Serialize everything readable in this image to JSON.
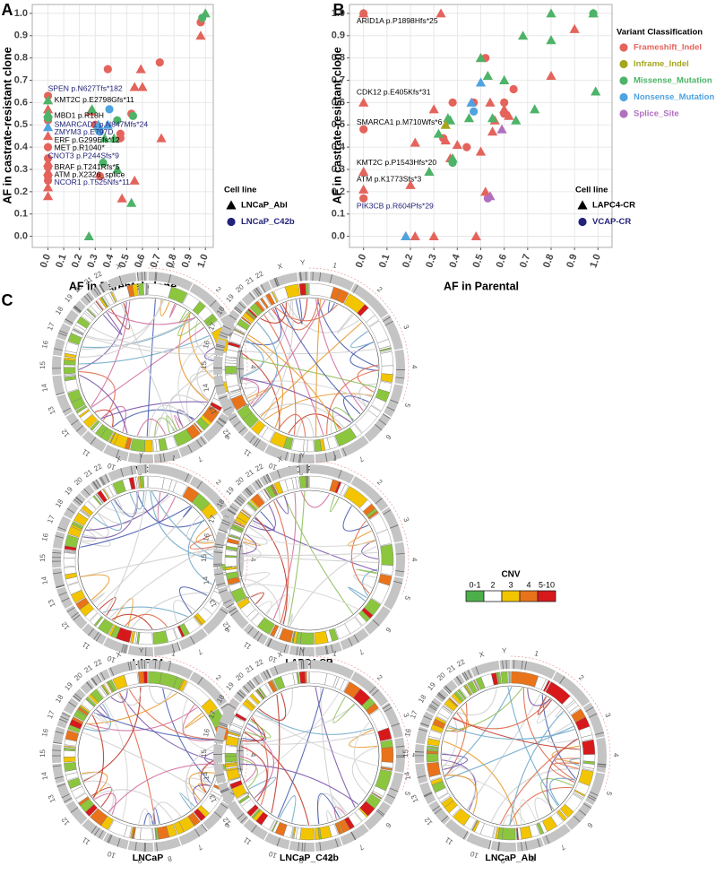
{
  "chart_data": [
    {
      "type": "scatter",
      "panel": "A",
      "xlabel": "AF in Parental clone",
      "ylabel": "AF in castrate-resistant clone",
      "xlim": [
        -0.1,
        1.05
      ],
      "ylim": [
        -0.05,
        1.04
      ],
      "grid": true,
      "xticks": [
        {
          "value": 0,
          "label": "0.0"
        },
        {
          "value": 0.1,
          "label": "0.1"
        },
        {
          "value": 0.2,
          "label": "0.2"
        },
        {
          "value": 0.3,
          "label": "0.3"
        },
        {
          "value": 0.4,
          "label": "0.4"
        },
        {
          "value": 0.5,
          "label": "0.5"
        },
        {
          "value": 0.6,
          "label": "0.6"
        },
        {
          "value": 0.7,
          "label": "0.7"
        },
        {
          "value": 0.8,
          "label": "0.8"
        },
        {
          "value": 0.9,
          "label": "0.9"
        },
        {
          "value": 1,
          "label": "1.0"
        }
      ],
      "yticks": [
        {
          "value": 0,
          "label": "0.0"
        },
        {
          "value": 0.1,
          "label": "0.1"
        },
        {
          "value": 0.2,
          "label": "0.2"
        },
        {
          "value": 0.3,
          "label": "0.3"
        },
        {
          "value": 0.4,
          "label": "0.4"
        },
        {
          "value": 0.5,
          "label": "0.5"
        },
        {
          "value": 0.6,
          "label": "0.6"
        },
        {
          "value": 0.7,
          "label": "0.7"
        },
        {
          "value": 0.8,
          "label": "0.8"
        },
        {
          "value": 0.9,
          "label": "0.9"
        },
        {
          "value": 1,
          "label": "1.0"
        }
      ],
      "series": [
        {
          "color": "#e4645c",
          "marker": "circle",
          "x": [
            0.97,
            0.38,
            0.71,
            0.53,
            0.3,
            0.46,
            0.46,
            0.33,
            0,
            0,
            0,
            0,
            0,
            0,
            0
          ],
          "y": [
            0.96,
            0.75,
            0.78,
            0.55,
            0.5,
            0.46,
            0.44,
            0.27,
            0.63,
            0.52,
            0.4,
            0.35,
            0.31,
            0.27,
            0.25
          ]
        },
        {
          "color": "#4db368",
          "marker": "circle",
          "x": [
            0.98,
            0.35,
            0.44,
            0.54,
            0.32,
            0
          ],
          "y": [
            0.98,
            0.33,
            0.52,
            0.54,
            0.48,
            0.53
          ]
        },
        {
          "color": "#4fa3e0",
          "marker": "circle",
          "x": [
            0.39,
            0.33
          ],
          "y": [
            0.57,
            0.47
          ]
        },
        {
          "color": "#e4645c",
          "marker": "triangle",
          "x": [
            0.97,
            0.59,
            0.55,
            0.6,
            0.72,
            0.47,
            0.55,
            0.27,
            0,
            0,
            0,
            0,
            0,
            0
          ],
          "y": [
            0.9,
            0.75,
            0.67,
            0.67,
            0.44,
            0.17,
            0.25,
            0.56,
            0.57,
            0.45,
            0.33,
            0.29,
            0.22,
            0.18
          ]
        },
        {
          "color": "#4db368",
          "marker": "triangle",
          "x": [
            1.0,
            0.26,
            0.44,
            0.53,
            0.28,
            0.36,
            0.42,
            0,
            0
          ],
          "y": [
            1.0,
            0.0,
            0.3,
            0.15,
            0.57,
            0.44,
            0.44,
            0.61,
            0.55
          ]
        },
        {
          "color": "#4fa3e0",
          "marker": "triangle",
          "x": [
            0.38,
            0.32,
            0
          ],
          "y": [
            0.5,
            0.5,
            0.49
          ]
        }
      ],
      "annotations": [
        {
          "text": "SPEN p.N627Tfs*182",
          "x": 0.0,
          "y": 0.66,
          "color": "#23237a"
        },
        {
          "text": "KMT2C p.E2798Gfs*11",
          "x": 0.04,
          "y": 0.61,
          "color": "#000000"
        },
        {
          "text": "MBD1 p.R18H",
          "x": 0.04,
          "y": 0.54,
          "color": "#000000"
        },
        {
          "text": "SMARCAD1 p.N847Mfs*24",
          "x": 0.04,
          "y": 0.5,
          "color": "#23237a"
        },
        {
          "text": "ZMYM3 p.E797D",
          "x": 0.04,
          "y": 0.465,
          "color": "#23237a"
        },
        {
          "text": "ERF p.G299Efs*12",
          "x": 0.04,
          "y": 0.43,
          "color": "#000000"
        },
        {
          "text": "MET p.R1040*",
          "x": 0.04,
          "y": 0.395,
          "color": "#000000"
        },
        {
          "text": "CNOT3 p.P244Sfs*9",
          "x": 0.0,
          "y": 0.36,
          "color": "#23237a"
        },
        {
          "text": "BRAF p.T241Rfs*5",
          "x": 0.04,
          "y": 0.31,
          "color": "#000000"
        },
        {
          "text": "ATM p.X2326_splice",
          "x": 0.04,
          "y": 0.275,
          "color": "#000000"
        },
        {
          "text": "NCOR1 p.T525Nfs*11",
          "x": 0.04,
          "y": 0.24,
          "color": "#23237a"
        }
      ],
      "legends": [
        {
          "title": "Cell line",
          "entries": [
            {
              "name": "LNCaP_Abl",
              "marker": "triangle",
              "color": "#000000"
            },
            {
              "name": "LNCaP_C42b",
              "marker": "circle",
              "color": "#23237a"
            }
          ]
        }
      ]
    },
    {
      "type": "scatter",
      "panel": "B",
      "xlabel": "AF in Parental",
      "ylabel": "AF in castrate-resistant clone",
      "xlim": [
        -0.06,
        1.06
      ],
      "ylim": [
        -0.05,
        1.04
      ],
      "grid": true,
      "xticks": [
        {
          "value": 0,
          "label": "0.0"
        },
        {
          "value": 0.1,
          "label": "0.1"
        },
        {
          "value": 0.2,
          "label": "0.2"
        },
        {
          "value": 0.3,
          "label": "0.3"
        },
        {
          "value": 0.4,
          "label": "0.4"
        },
        {
          "value": 0.5,
          "label": "0.5"
        },
        {
          "value": 0.6,
          "label": "0.6"
        },
        {
          "value": 0.7,
          "label": "0.7"
        },
        {
          "value": 0.8,
          "label": "0.8"
        },
        {
          "value": 0.9,
          "label": "0.9"
        },
        {
          "value": 1,
          "label": "1.0"
        }
      ],
      "yticks": [
        {
          "value": 0,
          "label": "0.0"
        },
        {
          "value": 0.1,
          "label": "0.1"
        },
        {
          "value": 0.2,
          "label": "0.2"
        },
        {
          "value": 0.3,
          "label": "0.3"
        },
        {
          "value": 0.4,
          "label": "0.4"
        },
        {
          "value": 0.5,
          "label": "0.5"
        },
        {
          "value": 0.6,
          "label": "0.6"
        },
        {
          "value": 0.7,
          "label": "0.7"
        },
        {
          "value": 0.8,
          "label": "0.8"
        },
        {
          "value": 0.9,
          "label": "0.9"
        },
        {
          "value": 1,
          "label": "1.0"
        }
      ],
      "series": [
        {
          "color": "#e4645c",
          "marker": "circle",
          "x": [
            0,
            0,
            0.34,
            0.38,
            0.44,
            0.52,
            0.6,
            0.6,
            0.64,
            0.47,
            0
          ],
          "y": [
            1,
            0.48,
            0.44,
            0.6,
            0.4,
            0.8,
            0.6,
            0.55,
            0.66,
            0.6,
            0.17
          ]
        },
        {
          "color": "#4db368",
          "marker": "circle",
          "x": [
            0.98,
            0.38
          ],
          "y": [
            1.0,
            0.33
          ]
        },
        {
          "color": "#4fa3e0",
          "marker": "circle",
          "x": [
            0.47
          ],
          "y": [
            0.56
          ]
        },
        {
          "color": "#b070c0",
          "marker": "circle",
          "x": [
            0.53
          ],
          "y": [
            0.17
          ]
        },
        {
          "color": "#e4645c",
          "marker": "triangle",
          "x": [
            0,
            0.33,
            0,
            0.3,
            0.22,
            0.2,
            0,
            0,
            0.18,
            0.22,
            0.3,
            0.48,
            0.9,
            0.8,
            0.5,
            0.54,
            0.55,
            0.5,
            0.35,
            0.4,
            0.56,
            0.6,
            0.62,
            0.52,
            0.37
          ],
          "y": [
            1,
            1,
            0.6,
            0.57,
            0.42,
            0.23,
            0.29,
            0.21,
            0,
            0,
            0,
            0,
            0.93,
            0.72,
            0.8,
            0.6,
            0.47,
            0.38,
            0.43,
            0.41,
            0.52,
            0.57,
            0.54,
            0.2,
            0.35
          ]
        },
        {
          "color": "#4db368",
          "marker": "triangle",
          "x": [
            0.8,
            0.98,
            0.99,
            0.68,
            0.8,
            0.5,
            0.53,
            0.6,
            0.65,
            0.73,
            0.55,
            0.45,
            0.37,
            0.32,
            0.38,
            0.28,
            0.36
          ],
          "y": [
            1,
            1,
            0.65,
            0.9,
            0.88,
            0.8,
            0.72,
            0.7,
            0.52,
            0.57,
            0.53,
            0.53,
            0.52,
            0.46,
            0.35,
            0.29,
            0.53
          ]
        },
        {
          "color": "#a5a520",
          "marker": "triangle",
          "x": [
            0.35
          ],
          "y": [
            0.5
          ]
        },
        {
          "color": "#4fa3e0",
          "marker": "triangle",
          "x": [
            0.46,
            0.5,
            0.18
          ],
          "y": [
            0.6,
            0.69,
            0
          ]
        },
        {
          "color": "#b070c0",
          "marker": "triangle",
          "x": [
            0.59,
            0.54
          ],
          "y": [
            0.48,
            0.18
          ]
        }
      ],
      "annotations": [
        {
          "text": "ARID1A p.P1898Hfs*25",
          "x": -0.03,
          "y": 0.965,
          "color": "#000000"
        },
        {
          "text": "CDK12 p.E405Kfs*31",
          "x": -0.03,
          "y": 0.645,
          "color": "#000000"
        },
        {
          "text": "SMARCA1 p.M710Wfs*6",
          "x": -0.03,
          "y": 0.51,
          "color": "#000000"
        },
        {
          "text": "KMT2C p.P1543Hfs*20",
          "x": -0.03,
          "y": 0.33,
          "color": "#000000"
        },
        {
          "text": "ATM p.K1773Sfs*3",
          "x": -0.03,
          "y": 0.255,
          "color": "#000000"
        },
        {
          "text": "PIK3CB p.R604Pfs*29",
          "x": -0.03,
          "y": 0.135,
          "color": "#23237a"
        }
      ],
      "legends": [
        {
          "title": "Cell line",
          "entries": [
            {
              "name": "LAPC4-CR",
              "marker": "triangle",
              "color": "#000000"
            },
            {
              "name": "VCAP-CR",
              "marker": "circle",
              "color": "#23237a"
            }
          ]
        },
        {
          "title": "Variant Classification",
          "entries": [
            {
              "name": "Frameshift_Indel",
              "marker": "circle",
              "color": "#e4645c"
            },
            {
              "name": "Inframe_Indel",
              "marker": "circle",
              "color": "#a5a520"
            },
            {
              "name": "Missense_Mutation",
              "marker": "circle",
              "color": "#4db368"
            },
            {
              "name": "Nonsense_Mutation",
              "marker": "circle",
              "color": "#4fa3e0"
            },
            {
              "name": "Splice_Site",
              "marker": "circle",
              "color": "#b070c0"
            }
          ]
        }
      ]
    },
    {
      "type": "circos",
      "panel": "C",
      "title": "VCaP",
      "chromosomes": [
        "1",
        "2",
        "3",
        "4",
        "5",
        "6",
        "7",
        "8",
        "9",
        "10",
        "11",
        "12",
        "13",
        "14",
        "15",
        "16",
        "17",
        "18",
        "19",
        "20",
        "21",
        "22",
        "X",
        "Y"
      ]
    },
    {
      "type": "circos",
      "title": "VCaP-CR",
      "chromosomes": [
        "1",
        "2",
        "3",
        "4",
        "5",
        "6",
        "7",
        "8",
        "9",
        "10",
        "11",
        "12",
        "13",
        "14",
        "15",
        "16",
        "17",
        "18",
        "19",
        "20",
        "21",
        "22",
        "X",
        "Y"
      ]
    },
    {
      "type": "circos",
      "title": "LAPC4",
      "chromosomes": [
        "1",
        "2",
        "3",
        "4",
        "5",
        "6",
        "7",
        "8",
        "9",
        "10",
        "11",
        "12",
        "13",
        "14",
        "15",
        "16",
        "17",
        "18",
        "19",
        "20",
        "21",
        "22",
        "X",
        "Y"
      ]
    },
    {
      "type": "circos",
      "title": "LAPC4-CR",
      "chromosomes": [
        "1",
        "2",
        "3",
        "4",
        "5",
        "6",
        "7",
        "8",
        "9",
        "10",
        "11",
        "12",
        "13",
        "14",
        "15",
        "16",
        "17",
        "18",
        "19",
        "20",
        "21",
        "22",
        "X",
        "Y"
      ]
    },
    {
      "type": "circos",
      "title": "LNCaP",
      "chromosomes": [
        "1",
        "2",
        "3",
        "4",
        "5",
        "6",
        "7",
        "8",
        "9",
        "10",
        "11",
        "12",
        "13",
        "14",
        "15",
        "16",
        "17",
        "18",
        "19",
        "20",
        "21",
        "22",
        "X",
        "Y"
      ]
    },
    {
      "type": "circos",
      "title": "LNCaP_C42b",
      "chromosomes": [
        "1",
        "2",
        "3",
        "4",
        "5",
        "6",
        "7",
        "8",
        "9",
        "10",
        "11",
        "12",
        "13",
        "14",
        "15",
        "16",
        "17",
        "18",
        "19",
        "20",
        "21",
        "22",
        "X",
        "Y"
      ]
    },
    {
      "type": "circos",
      "title": "LNCaP_Abl",
      "chromosomes": [
        "1",
        "2",
        "3",
        "4",
        "5",
        "6",
        "7",
        "8",
        "9",
        "10",
        "11",
        "12",
        "13",
        "14",
        "15",
        "16",
        "17",
        "18",
        "19",
        "20",
        "21",
        "22",
        "X",
        "Y"
      ]
    },
    {
      "type": "legend",
      "title": "CNV",
      "categories": [
        "0-1",
        "2",
        "3",
        "4",
        "5-10"
      ],
      "colors": [
        "#4daf4a",
        "#ffffff",
        "#f2c500",
        "#e8731a",
        "#d7191c"
      ]
    }
  ]
}
